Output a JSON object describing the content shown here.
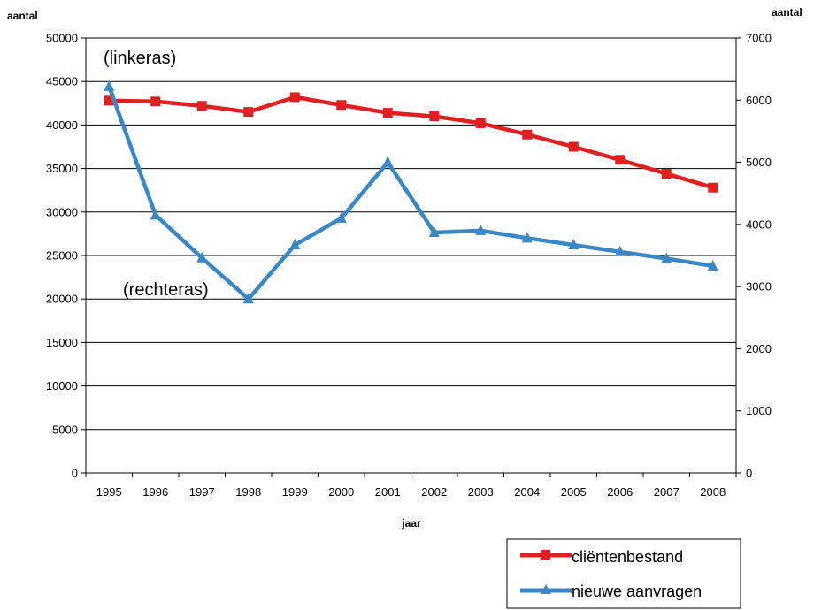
{
  "chart_data": {
    "type": "line",
    "x": [
      "1995",
      "1996",
      "1997",
      "1998",
      "1999",
      "2000",
      "2001",
      "2002",
      "2003",
      "2004",
      "2005",
      "2006",
      "2007",
      "2008"
    ],
    "xlabel": "jaar",
    "ylabel_left": "aantal",
    "ylabel_right": "aantal",
    "ylim_left": [
      0,
      50000
    ],
    "ylim_right": [
      0,
      7000
    ],
    "yticks_left": [
      "0",
      "5000",
      "10000",
      "15000",
      "20000",
      "25000",
      "30000",
      "35000",
      "40000",
      "45000",
      "50000"
    ],
    "yticks_right": [
      "0",
      "1000",
      "2000",
      "3000",
      "4000",
      "5000",
      "6000",
      "7000"
    ],
    "grid": true,
    "legend_position": "bottom-right",
    "annotations": [
      "(linkeras)",
      "(rechteras)"
    ],
    "series": [
      {
        "name": "cliëntenbestand",
        "axis": "left",
        "marker": "square",
        "color": "#e02020",
        "values": [
          42800,
          42700,
          42200,
          41500,
          43200,
          42300,
          41400,
          41000,
          40200,
          38900,
          37500,
          36000,
          34400,
          32800
        ]
      },
      {
        "name": "nieuwe aanvragen",
        "axis": "right",
        "marker": "triangle",
        "color": "#3a87c8",
        "values": [
          6220,
          4150,
          3460,
          2800,
          3670,
          4100,
          5000,
          3870,
          3900,
          3780,
          3670,
          3560,
          3450,
          3330
        ]
      }
    ]
  }
}
